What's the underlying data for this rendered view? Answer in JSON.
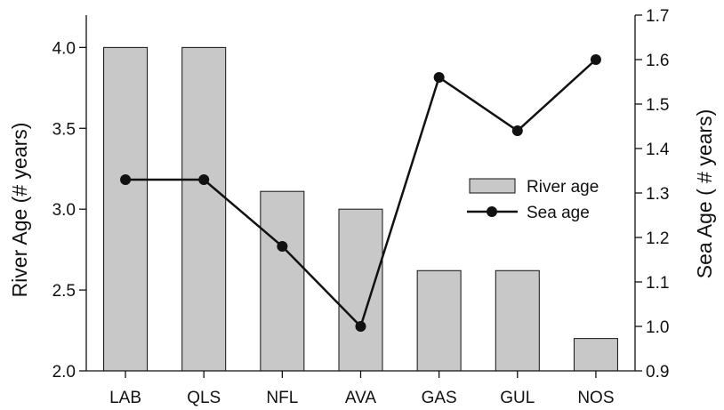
{
  "chart_data": {
    "type": "bar",
    "title": "",
    "categories": [
      "LAB",
      "QLS",
      "NFL",
      "AVA",
      "GAS",
      "GUL",
      "NOS"
    ],
    "series": [
      {
        "name": "River age",
        "type": "bar",
        "axis": "left",
        "color": "#c8c8c8",
        "values": [
          4.0,
          4.0,
          3.11,
          3.0,
          2.62,
          2.62,
          2.2
        ]
      },
      {
        "name": "Sea age",
        "type": "line",
        "axis": "right",
        "color": "#111111",
        "values": [
          1.33,
          1.33,
          1.18,
          1.0,
          1.56,
          1.44,
          1.6
        ]
      }
    ],
    "xlabel": "",
    "ylabel": "River Age (# years)",
    "ylabel_right": "Sea Age ( # years)",
    "ylim": [
      2.0,
      4.2
    ],
    "ylim_right": [
      0.9,
      1.7
    ],
    "yticks": [
      "2.0",
      "2.5",
      "3.0",
      "3.5",
      "4.0"
    ],
    "yticks_right": [
      "0.9",
      "1.0",
      "1.1",
      "1.2",
      "1.3",
      "1.4",
      "1.5",
      "1.6",
      "1.7"
    ],
    "grid": false,
    "legend_position": "center-right"
  }
}
